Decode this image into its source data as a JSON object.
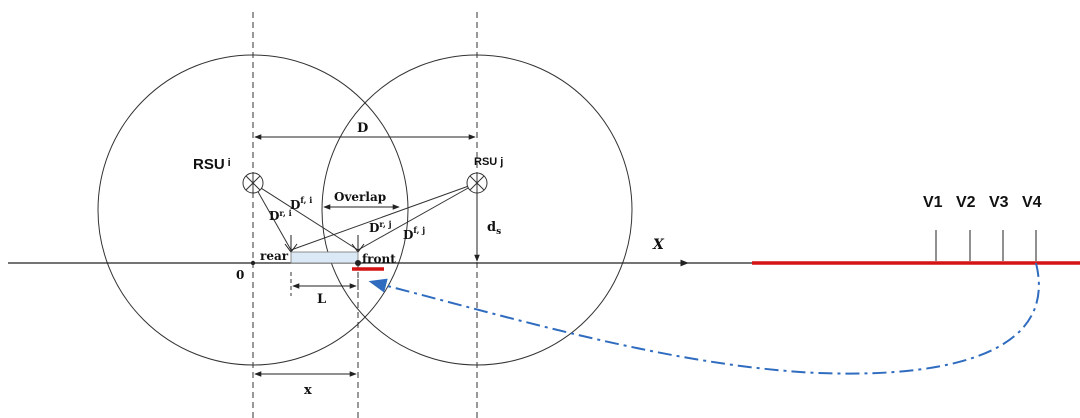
{
  "labels": {
    "rsu_i": "RSU",
    "rsu_i_sub": "i",
    "rsu_j": "RSU",
    "rsu_j_sub": "j",
    "D": "D",
    "overlap": "Overlap",
    "Dfi": "D",
    "Dfi_sub": "f, i",
    "Dri": "D",
    "Dri_sub": "r, i",
    "Drj": "D",
    "Drj_sub": "r, j",
    "Dfj": "D",
    "Dfj_sub": "f, j",
    "ds": "d",
    "ds_sub": "s",
    "rear": "rear",
    "front": "front",
    "origin": "0",
    "L": "L",
    "x": "x",
    "X": "X",
    "v1": "V1",
    "v2": "V2",
    "v3": "V3",
    "v4": "V4"
  },
  "colors": {
    "line": "#222222",
    "road_highlight": "#d41414",
    "arrow": "#2f6cbf",
    "vehicle_fill": "#dbe8f5"
  }
}
